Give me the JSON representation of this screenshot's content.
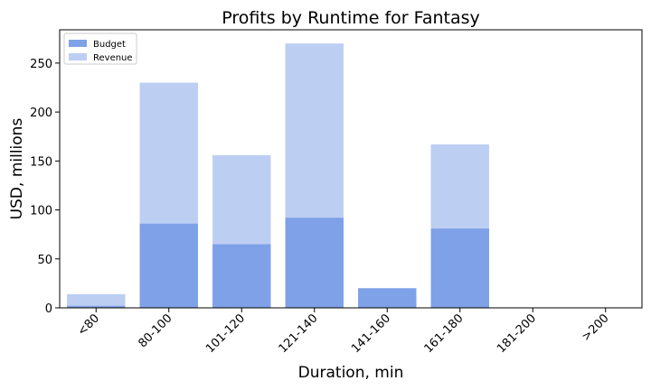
{
  "chart_data": {
    "type": "bar",
    "title": "Profits by Runtime for Fantasy",
    "xlabel": "Duration, min",
    "ylabel": "USD, millions",
    "categories": [
      "<80",
      "80-100",
      "101-120",
      "121-140",
      "141-160",
      "161-180",
      "181-200",
      ">200"
    ],
    "series": [
      {
        "name": "Budget",
        "values": [
          2,
          86,
          65,
          92,
          20,
          81,
          0,
          0
        ],
        "color": "#7fa1e7"
      },
      {
        "name": "Revenue",
        "values": [
          14,
          230,
          156,
          270,
          20,
          167,
          0,
          0
        ],
        "color": "#bdcef3"
      }
    ],
    "ylim": [
      0,
      284
    ],
    "yticks": [
      0,
      50,
      100,
      150,
      200,
      250
    ],
    "legend": "top-left",
    "grid": false
  }
}
